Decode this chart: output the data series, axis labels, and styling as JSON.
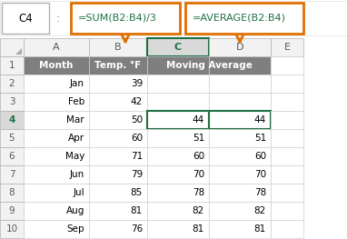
{
  "formula_bar_left": "=SUM(B2:B4)/3",
  "formula_bar_right": "=AVERAGE(B2:B4)",
  "cell_ref": "C4",
  "col_headers": [
    "A",
    "B",
    "C",
    "D",
    "E"
  ],
  "row_numbers": [
    "1",
    "2",
    "3",
    "4",
    "5",
    "6",
    "7",
    "8",
    "9",
    "10"
  ],
  "header_row": [
    "Month",
    "Temp. °F",
    "Moving Average",
    "",
    ""
  ],
  "data_rows": [
    [
      "Jan",
      "39",
      "",
      "",
      ""
    ],
    [
      "Feb",
      "42",
      "",
      "",
      ""
    ],
    [
      "Mar",
      "50",
      "44",
      "44",
      ""
    ],
    [
      "Apr",
      "60",
      "51",
      "51",
      ""
    ],
    [
      "May",
      "71",
      "60",
      "60",
      ""
    ],
    [
      "Jun",
      "79",
      "70",
      "70",
      ""
    ],
    [
      "Jul",
      "85",
      "78",
      "78",
      ""
    ],
    [
      "Aug",
      "81",
      "82",
      "82",
      ""
    ],
    [
      "Sep",
      "76",
      "81",
      "81",
      ""
    ]
  ],
  "header_bg": "#7f7f7f",
  "header_fg": "#ffffff",
  "selected_col_bg": "#d9d9d9",
  "selected_col_fg": "#1f7145",
  "formula_box_border": "#e07000",
  "arrow_color": "#e07000",
  "active_cell_border": "#1f7145",
  "active_row_num_color": "#1f7145",
  "grid_color": "#d0d0d0",
  "bg_color": "#ffffff",
  "row_header_bg": "#f2f2f2",
  "row_header_fg": "#595959"
}
